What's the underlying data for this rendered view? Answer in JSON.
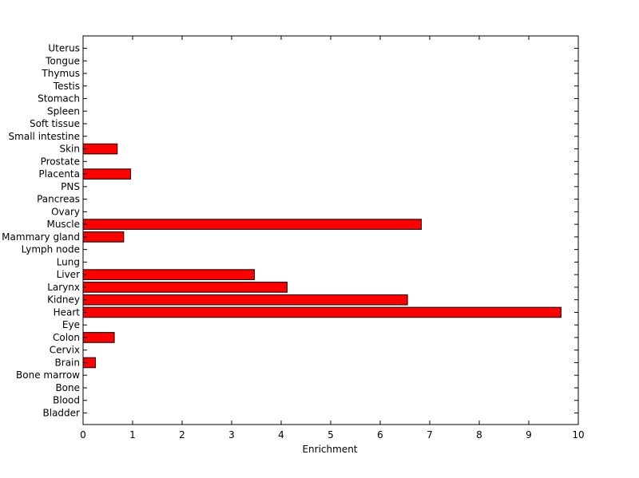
{
  "chart_data": {
    "type": "bar",
    "orientation": "horizontal",
    "categories": [
      "Bladder",
      "Blood",
      "Bone",
      "Bone marrow",
      "Brain",
      "Cervix",
      "Colon",
      "Eye",
      "Heart",
      "Kidney",
      "Larynx",
      "Liver",
      "Lung",
      "Lymph node",
      "Mammary gland",
      "Muscle",
      "Ovary",
      "Pancreas",
      "PNS",
      "Placenta",
      "Prostate",
      "Skin",
      "Small intestine",
      "Soft tissue",
      "Spleen",
      "Stomach",
      "Testis",
      "Thymus",
      "Tongue",
      "Uterus"
    ],
    "values": [
      0,
      0,
      0,
      0,
      0.25,
      0,
      0.63,
      0,
      9.65,
      6.55,
      4.12,
      3.46,
      0,
      0,
      0.82,
      6.83,
      0,
      0,
      0,
      0.96,
      0,
      0.69,
      0,
      0,
      0,
      0,
      0,
      0,
      0,
      0
    ],
    "xlabel": "Enrichment",
    "ylabel": "",
    "title": "",
    "xlim": [
      0,
      10
    ],
    "xticks": [
      0,
      1,
      2,
      3,
      4,
      5,
      6,
      7,
      8,
      9,
      10
    ],
    "grid": false,
    "bar_color": "#ff0000",
    "bar_edge_color": "#000000"
  }
}
